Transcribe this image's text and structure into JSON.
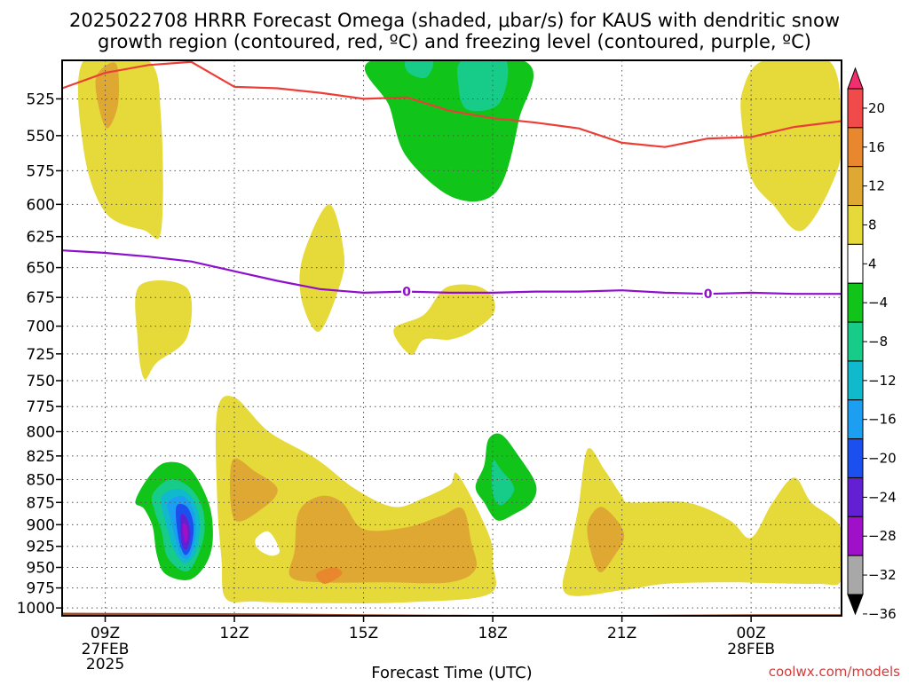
{
  "title_line1": "2025022708 HRRR Forecast Omega (shaded, μbar/s) for KAUS with dendritic snow",
  "title_line2": "growth region (contoured, red, ºC) and freezing level (contoured, purple, ºC)",
  "credit": "coolwx.com/models",
  "chart_data": {
    "type": "heatmap",
    "xlabel": "Forecast Time (UTC)",
    "x_ticks": [
      {
        "label": "09Z",
        "sub": [
          "27FEB",
          "2025"
        ],
        "hour": 9
      },
      {
        "label": "12Z",
        "sub": [],
        "hour": 12
      },
      {
        "label": "15Z",
        "sub": [],
        "hour": 15
      },
      {
        "label": "18Z",
        "sub": [],
        "hour": 18
      },
      {
        "label": "21Z",
        "sub": [],
        "hour": 21
      },
      {
        "label": "00Z",
        "sub": [
          "28FEB"
        ],
        "hour": 24
      }
    ],
    "xlim_hours": [
      8,
      26.1
    ],
    "y_ticks_mb": [
      "525",
      "550",
      "575",
      "600",
      "625",
      "650",
      "675",
      "700",
      "725",
      "750",
      "775",
      "800",
      "825",
      "850",
      "875",
      "900",
      "925",
      "950",
      "975",
      "1000"
    ],
    "ylim_mb": [
      500,
      1010
    ],
    "y_scale": "log-pressure",
    "grid": "dotted",
    "colorbar": {
      "labels": [
        "20",
        "16",
        "12",
        "8",
        "4",
        "−4",
        "−8",
        "−12",
        "−16",
        "−20",
        "−24",
        "−28",
        "−32",
        "−36"
      ],
      "colors": [
        "#f22e6e",
        "#f04a4a",
        "#e8872d",
        "#dfa833",
        "#e6d93a",
        "#ffffff",
        "#10c41a",
        "#16cc88",
        "#10b9cc",
        "#1c9ff0",
        "#1c50ee",
        "#6320d2",
        "#a010c9",
        "#a8a8a8",
        "#000000"
      ]
    },
    "freezing_level_label": "0",
    "freezing_level_label_hours": [
      16.0,
      23.0
    ],
    "series": [
      {
        "name": "dendritic snow growth region",
        "color": "#ec3e36",
        "points": [
          [
            8.0,
            518
          ],
          [
            9.0,
            508
          ],
          [
            10.0,
            503
          ],
          [
            11.0,
            501
          ],
          [
            12.0,
            517
          ],
          [
            13.0,
            518
          ],
          [
            14.0,
            521
          ],
          [
            15.0,
            525
          ],
          [
            16.0,
            524
          ],
          [
            17.0,
            533
          ],
          [
            18.0,
            538
          ],
          [
            19.0,
            541
          ],
          [
            20.0,
            545
          ],
          [
            21.0,
            555
          ],
          [
            22.0,
            558
          ],
          [
            23.0,
            552
          ],
          [
            24.0,
            551
          ],
          [
            25.0,
            544
          ],
          [
            26.1,
            540
          ]
        ]
      },
      {
        "name": "freezing level",
        "color": "#8f10cc",
        "points": [
          [
            8.0,
            636
          ],
          [
            9.0,
            638
          ],
          [
            10.0,
            641
          ],
          [
            11.0,
            645
          ],
          [
            12.0,
            653
          ],
          [
            13.0,
            661
          ],
          [
            14.0,
            668
          ],
          [
            15.0,
            671
          ],
          [
            16.0,
            670
          ],
          [
            17.0,
            671
          ],
          [
            18.0,
            671
          ],
          [
            19.0,
            670
          ],
          [
            20.0,
            670
          ],
          [
            21.0,
            669
          ],
          [
            22.0,
            671
          ],
          [
            23.0,
            672
          ],
          [
            24.0,
            671
          ],
          [
            25.0,
            672
          ],
          [
            26.1,
            672
          ]
        ]
      }
    ],
    "regions": [
      {
        "value": 4,
        "color": "#e6d93a",
        "points": [
          [
            8.5,
            500
          ],
          [
            10.0,
            500
          ],
          [
            10.3,
            540
          ],
          [
            10.3,
            620
          ],
          [
            9.9,
            620
          ],
          [
            9.0,
            606
          ],
          [
            8.5,
            560
          ]
        ]
      },
      {
        "value": 8,
        "color": "#dfa833",
        "points": [
          [
            8.8,
            510
          ],
          [
            9.25,
            502
          ],
          [
            9.3,
            528
          ],
          [
            9.05,
            545
          ],
          [
            8.85,
            530
          ]
        ]
      },
      {
        "value": 4,
        "color": "#e6d93a",
        "points": [
          [
            24.3,
            500
          ],
          [
            25.8,
            500
          ],
          [
            26.1,
            540
          ],
          [
            26.0,
            575
          ],
          [
            25.2,
            620
          ],
          [
            24.5,
            600
          ],
          [
            24.0,
            580
          ],
          [
            23.8,
            545
          ],
          [
            23.8,
            520
          ]
        ]
      },
      {
        "value": -4,
        "color": "#10c41a",
        "points": [
          [
            15.2,
            500
          ],
          [
            18.7,
            500
          ],
          [
            18.6,
            540
          ],
          [
            18.1,
            590
          ],
          [
            17.1,
            595
          ],
          [
            16.0,
            565
          ],
          [
            15.6,
            530
          ]
        ]
      },
      {
        "value": -8,
        "color": "#16cc88",
        "points": [
          [
            17.3,
            500
          ],
          [
            18.3,
            500
          ],
          [
            18.15,
            528
          ],
          [
            17.4,
            532
          ],
          [
            17.2,
            515
          ]
        ]
      },
      {
        "value": -8,
        "color": "#16cc88",
        "points": [
          [
            16.0,
            500
          ],
          [
            16.6,
            500
          ],
          [
            16.45,
            511
          ],
          [
            16.05,
            508
          ]
        ]
      },
      {
        "value": 4,
        "color": "#e6d93a",
        "points": [
          [
            14.2,
            600
          ],
          [
            14.55,
            640
          ],
          [
            14.4,
            670
          ],
          [
            13.95,
            705
          ],
          [
            13.55,
            675
          ],
          [
            13.6,
            640
          ]
        ]
      },
      {
        "value": 4,
        "color": "#e6d93a",
        "points": [
          [
            9.8,
            665
          ],
          [
            10.9,
            667
          ],
          [
            10.9,
            710
          ],
          [
            10.2,
            733
          ],
          [
            9.9,
            748
          ],
          [
            9.75,
            710
          ]
        ]
      },
      {
        "value": 4,
        "color": "#e6d93a",
        "points": [
          [
            16.4,
            690
          ],
          [
            16.9,
            667
          ],
          [
            17.6,
            665
          ],
          [
            18.0,
            675
          ],
          [
            18.0,
            690
          ],
          [
            17.5,
            705
          ],
          [
            17.0,
            712
          ],
          [
            16.4,
            712
          ],
          [
            16.1,
            726
          ],
          [
            15.7,
            703
          ]
        ]
      },
      {
        "value": 4,
        "color": "#e6d93a",
        "points": [
          [
            11.6,
            780
          ],
          [
            12.0,
            766
          ],
          [
            12.8,
            800
          ],
          [
            13.9,
            828
          ],
          [
            14.8,
            860
          ],
          [
            15.7,
            880
          ],
          [
            16.4,
            870
          ],
          [
            17.0,
            856
          ],
          [
            17.2,
            845
          ],
          [
            17.9,
            910
          ],
          [
            18.0,
            945
          ],
          [
            17.9,
            983
          ],
          [
            16.0,
            993
          ],
          [
            14.0,
            994
          ],
          [
            12.5,
            992
          ],
          [
            11.8,
            988
          ],
          [
            11.7,
            940
          ],
          [
            11.6,
            870
          ]
        ]
      },
      {
        "value": 4,
        "color": "#e6d93a",
        "points": [
          [
            20.0,
            878
          ],
          [
            20.2,
            818
          ],
          [
            20.6,
            840
          ],
          [
            21.0,
            868
          ],
          [
            21.2,
            875
          ],
          [
            22.5,
            875
          ],
          [
            23.5,
            895
          ],
          [
            24.0,
            915
          ],
          [
            24.5,
            875
          ],
          [
            25.0,
            848
          ],
          [
            25.4,
            875
          ],
          [
            26.1,
            905
          ],
          [
            26.1,
            965
          ],
          [
            25.5,
            970
          ],
          [
            23.5,
            968
          ],
          [
            22.0,
            970
          ],
          [
            21.0,
            978
          ],
          [
            19.7,
            982
          ],
          [
            19.8,
            930
          ]
        ]
      },
      {
        "value": 8,
        "color": "#dfa833",
        "points": [
          [
            11.95,
            830
          ],
          [
            12.5,
            842
          ],
          [
            13.0,
            860
          ],
          [
            12.7,
            880
          ],
          [
            12.0,
            894
          ]
        ]
      },
      {
        "value": 8,
        "color": "#dfa833",
        "points": [
          [
            13.5,
            885
          ],
          [
            14.0,
            868
          ],
          [
            14.5,
            875
          ],
          [
            15.0,
            905
          ],
          [
            16.0,
            903
          ],
          [
            16.8,
            890
          ],
          [
            17.3,
            882
          ],
          [
            17.5,
            920
          ],
          [
            17.6,
            952
          ],
          [
            17.0,
            968
          ],
          [
            15.5,
            968
          ],
          [
            14.0,
            968
          ],
          [
            13.3,
            961
          ],
          [
            13.4,
            930
          ]
        ]
      },
      {
        "value": 12,
        "color": "#e8872d",
        "points": [
          [
            13.9,
            958
          ],
          [
            14.3,
            950
          ],
          [
            14.5,
            958
          ],
          [
            14.1,
            970
          ]
        ]
      },
      {
        "value": 8,
        "color": "#dfa833",
        "points": [
          [
            20.5,
            880
          ],
          [
            20.9,
            896
          ],
          [
            21.05,
            915
          ],
          [
            20.8,
            938
          ],
          [
            20.5,
            956
          ],
          [
            20.3,
            935
          ],
          [
            20.2,
            900
          ]
        ]
      },
      {
        "value": -4,
        "color": "#10c41a",
        "points": [
          [
            9.7,
            874
          ],
          [
            10.0,
            848
          ],
          [
            10.4,
            832
          ],
          [
            10.95,
            838
          ],
          [
            11.4,
            875
          ],
          [
            11.5,
            915
          ],
          [
            11.35,
            945
          ],
          [
            10.95,
            965
          ],
          [
            10.4,
            958
          ],
          [
            10.2,
            935
          ],
          [
            10.1,
            902
          ],
          [
            9.9,
            882
          ]
        ]
      },
      {
        "value": -4,
        "color": "#10c41a",
        "points": [
          [
            17.8,
            835
          ],
          [
            17.9,
            808
          ],
          [
            18.2,
            803
          ],
          [
            18.6,
            825
          ],
          [
            19.0,
            855
          ],
          [
            18.9,
            875
          ],
          [
            18.5,
            888
          ],
          [
            18.1,
            895
          ],
          [
            17.8,
            875
          ],
          [
            17.6,
            858
          ]
        ]
      },
      {
        "value": -8,
        "color": "#16cc88",
        "points": [
          [
            18.0,
            830
          ],
          [
            18.2,
            840
          ],
          [
            18.5,
            860
          ],
          [
            18.2,
            878
          ],
          [
            18.0,
            865
          ]
        ]
      },
      {
        "value": -8,
        "color": "#16cc88",
        "points": [
          [
            10.1,
            866
          ],
          [
            10.5,
            850
          ],
          [
            10.95,
            858
          ],
          [
            11.25,
            880
          ],
          [
            11.3,
            910
          ],
          [
            11.1,
            942
          ],
          [
            10.85,
            955
          ],
          [
            10.45,
            938
          ],
          [
            10.3,
            906
          ],
          [
            10.15,
            885
          ]
        ]
      },
      {
        "value": -12,
        "color": "#10b9cc",
        "points": [
          [
            10.3,
            870
          ],
          [
            10.7,
            860
          ],
          [
            11.05,
            872
          ],
          [
            11.2,
            900
          ],
          [
            11.1,
            932
          ],
          [
            10.85,
            945
          ],
          [
            10.6,
            930
          ],
          [
            10.45,
            905
          ]
        ]
      },
      {
        "value": -16,
        "color": "#1c9ff0",
        "points": [
          [
            10.45,
            875
          ],
          [
            10.8,
            868
          ],
          [
            11.05,
            885
          ],
          [
            11.1,
            912
          ],
          [
            10.95,
            938
          ],
          [
            10.75,
            935
          ],
          [
            10.6,
            910
          ],
          [
            10.5,
            890
          ]
        ]
      },
      {
        "value": -20,
        "color": "#1c50ee",
        "points": [
          [
            10.65,
            880
          ],
          [
            10.9,
            880
          ],
          [
            11.05,
            900
          ],
          [
            11.0,
            925
          ],
          [
            10.85,
            935
          ],
          [
            10.7,
            915
          ]
        ]
      },
      {
        "value": -24,
        "color": "#6320d2",
        "points": [
          [
            10.75,
            890
          ],
          [
            10.9,
            893
          ],
          [
            10.98,
            910
          ],
          [
            10.9,
            928
          ],
          [
            10.78,
            922
          ]
        ]
      },
      {
        "value": -28,
        "color": "#a010c9",
        "points": [
          [
            10.8,
            900
          ],
          [
            10.9,
            902
          ],
          [
            10.92,
            915
          ],
          [
            10.85,
            920
          ]
        ]
      },
      {
        "value": 0,
        "color": "#ffffff",
        "points": [
          [
            12.5,
            916
          ],
          [
            12.8,
            908
          ],
          [
            13.05,
            930
          ],
          [
            12.85,
            936
          ],
          [
            12.55,
            928
          ]
        ]
      }
    ],
    "terrain": {
      "color": "#a0522d",
      "points": [
        [
          8.0,
          1006
        ],
        [
          13.0,
          1007
        ],
        [
          15.0,
          1008
        ],
        [
          18.0,
          1009
        ],
        [
          21.0,
          1009
        ],
        [
          24.0,
          1008
        ],
        [
          26.1,
          1008
        ]
      ]
    }
  }
}
